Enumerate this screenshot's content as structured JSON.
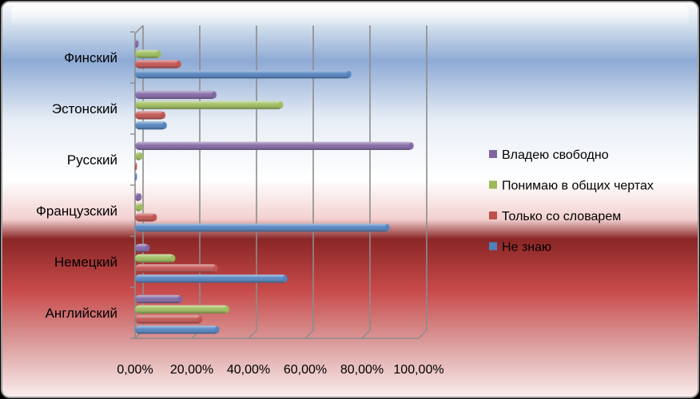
{
  "chart_data": {
    "type": "bar",
    "orientation": "horizontal",
    "categories": [
      "Английский",
      "Немецкий",
      "Французский",
      "Русский",
      "Эстонский",
      "Финский"
    ],
    "series": [
      {
        "name": "Не знаю",
        "color": "#4F81BD",
        "values": [
          0.295,
          0.535,
          0.895,
          0.0,
          0.11,
          0.76
        ]
      },
      {
        "name": "Только со словарем",
        "color": "#C0504D",
        "values": [
          0.235,
          0.29,
          0.075,
          0.005,
          0.105,
          0.16
        ]
      },
      {
        "name": "Понимаю в общих чертах",
        "color": "#9BBB59",
        "values": [
          0.33,
          0.14,
          0.025,
          0.025,
          0.52,
          0.09
        ]
      },
      {
        "name": "Владею свободно",
        "color": "#8064A2",
        "values": [
          0.165,
          0.05,
          0.02,
          0.98,
          0.285,
          0.01
        ]
      }
    ],
    "xlim": [
      0,
      1
    ],
    "xticks": [
      "0,00%",
      "20,00%",
      "40,00%",
      "60,00%",
      "80,00%",
      "100,00%"
    ],
    "grid": true,
    "legend_position": "right"
  }
}
